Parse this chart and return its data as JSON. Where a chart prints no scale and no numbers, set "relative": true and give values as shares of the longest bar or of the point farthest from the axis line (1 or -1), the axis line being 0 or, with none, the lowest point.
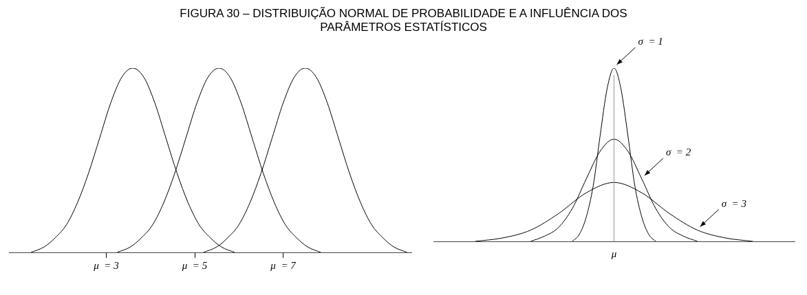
{
  "chart_data": [
    {
      "type": "line",
      "title": "FIGURA 30 – DISTRIBUIÇÃO NORMAL DE PROBABILIDADE E A INFLUÊNCIA DOS PARÂMETROS ESTATÍSTICOS",
      "relative": true,
      "xlim": [
        0.8,
        9.9
      ],
      "xticks": [
        {
          "value": 3,
          "label": "μ  = 3"
        },
        {
          "value": 5,
          "label": "μ  = 5"
        },
        {
          "value": 7,
          "label": "μ  = 7"
        }
      ],
      "tick_labels": "x",
      "marker": "none",
      "line_style": "solid",
      "series": [
        {
          "color": "#000000",
          "x": [
            1.3,
            1.6,
            1.85,
            2.1,
            2.35,
            2.6,
            2.85,
            3.1,
            3.35,
            3.6,
            3.85,
            4.1,
            4.35,
            4.6,
            4.85,
            5.1,
            5.35,
            5.6,
            5.9
          ],
          "values": [
            0,
            0.03,
            0.08,
            0.15,
            0.27,
            0.43,
            0.62,
            0.81,
            0.95,
            1,
            0.95,
            0.81,
            0.62,
            0.43,
            0.27,
            0.15,
            0.08,
            0.03,
            0
          ]
        },
        {
          "color": "#000000",
          "x": [
            3.25,
            3.55,
            3.8,
            4.05,
            4.3,
            4.55,
            4.8,
            5.05,
            5.3,
            5.55,
            5.8,
            6.05,
            6.3,
            6.55,
            6.8,
            7.05,
            7.3,
            7.55,
            7.85
          ],
          "values": [
            0,
            0.03,
            0.08,
            0.15,
            0.27,
            0.43,
            0.62,
            0.81,
            0.95,
            1,
            0.95,
            0.81,
            0.62,
            0.43,
            0.27,
            0.15,
            0.08,
            0.03,
            0
          ]
        },
        {
          "color": "#000000",
          "x": [
            5.2,
            5.5,
            5.75,
            6.0,
            6.25,
            6.5,
            6.75,
            7.0,
            7.25,
            7.5,
            7.75,
            8.0,
            8.25,
            8.5,
            8.75,
            9.0,
            9.25,
            9.5,
            9.8
          ],
          "values": [
            0,
            0.03,
            0.08,
            0.15,
            0.27,
            0.43,
            0.62,
            0.81,
            0.95,
            1,
            0.95,
            0.81,
            0.62,
            0.43,
            0.27,
            0.15,
            0.08,
            0.03,
            0
          ]
        }
      ]
    },
    {
      "type": "line",
      "relative": true,
      "tick_labels": false,
      "marker": "none",
      "line_style": "solid",
      "categories": [
        null,
        null,
        null,
        null,
        null,
        null,
        null,
        null,
        null,
        null,
        null,
        null,
        null,
        null,
        null,
        null,
        null,
        null,
        null,
        null,
        null,
        null,
        null,
        null,
        null,
        null,
        null,
        null,
        null,
        null,
        null,
        null,
        null,
        null,
        null,
        null,
        null,
        null,
        null,
        null,
        null,
        null,
        null,
        null,
        null,
        null,
        null,
        null,
        null,
        null,
        null,
        null,
        null
      ],
      "ref_lines": [
        {
          "axis": "x",
          "label": "μ",
          "color": "#999999"
        }
      ],
      "annotations": [
        "σ  = 1",
        "σ  = 2",
        "σ  = 3"
      ],
      "series": [
        {
          "color": "#000000",
          "values": [
            null,
            null,
            null,
            null,
            null,
            null,
            null,
            null,
            null,
            null,
            null,
            null,
            null,
            null,
            null,
            null,
            null,
            null,
            null,
            null,
            0,
            0.04,
            0.14,
            0.32,
            0.61,
            0.88,
            1,
            0.88,
            0.61,
            0.32,
            0.14,
            0.04,
            0,
            null,
            null,
            null,
            null,
            null,
            null,
            null,
            null,
            null,
            null,
            null,
            null,
            null,
            null,
            null,
            null,
            null,
            null,
            null,
            null
          ]
        },
        {
          "color": "#000000",
          "values": [
            null,
            null,
            null,
            null,
            null,
            null,
            null,
            null,
            null,
            null,
            null,
            null,
            null,
            null,
            0,
            null,
            0.03,
            null,
            0.08,
            null,
            0.19,
            null,
            0.36,
            null,
            0.52,
            null,
            0.59,
            null,
            0.52,
            null,
            0.36,
            null,
            0.19,
            null,
            0.08,
            null,
            0.03,
            null,
            0,
            null,
            null,
            null,
            null,
            null,
            null,
            null,
            null,
            null,
            null,
            null,
            null,
            null,
            null
          ]
        },
        {
          "color": "#000000",
          "values": [
            null,
            null,
            null,
            null,
            null,
            null,
            0,
            null,
            null,
            null,
            0.02,
            null,
            null,
            null,
            0.065,
            null,
            null,
            null,
            0.16,
            null,
            null,
            null,
            0.28,
            null,
            null,
            null,
            0.34,
            null,
            null,
            null,
            0.28,
            null,
            null,
            null,
            0.16,
            null,
            null,
            null,
            0.065,
            null,
            null,
            null,
            0.02,
            null,
            null,
            null,
            0,
            null,
            null,
            null,
            null,
            null,
            null
          ]
        }
      ]
    }
  ]
}
